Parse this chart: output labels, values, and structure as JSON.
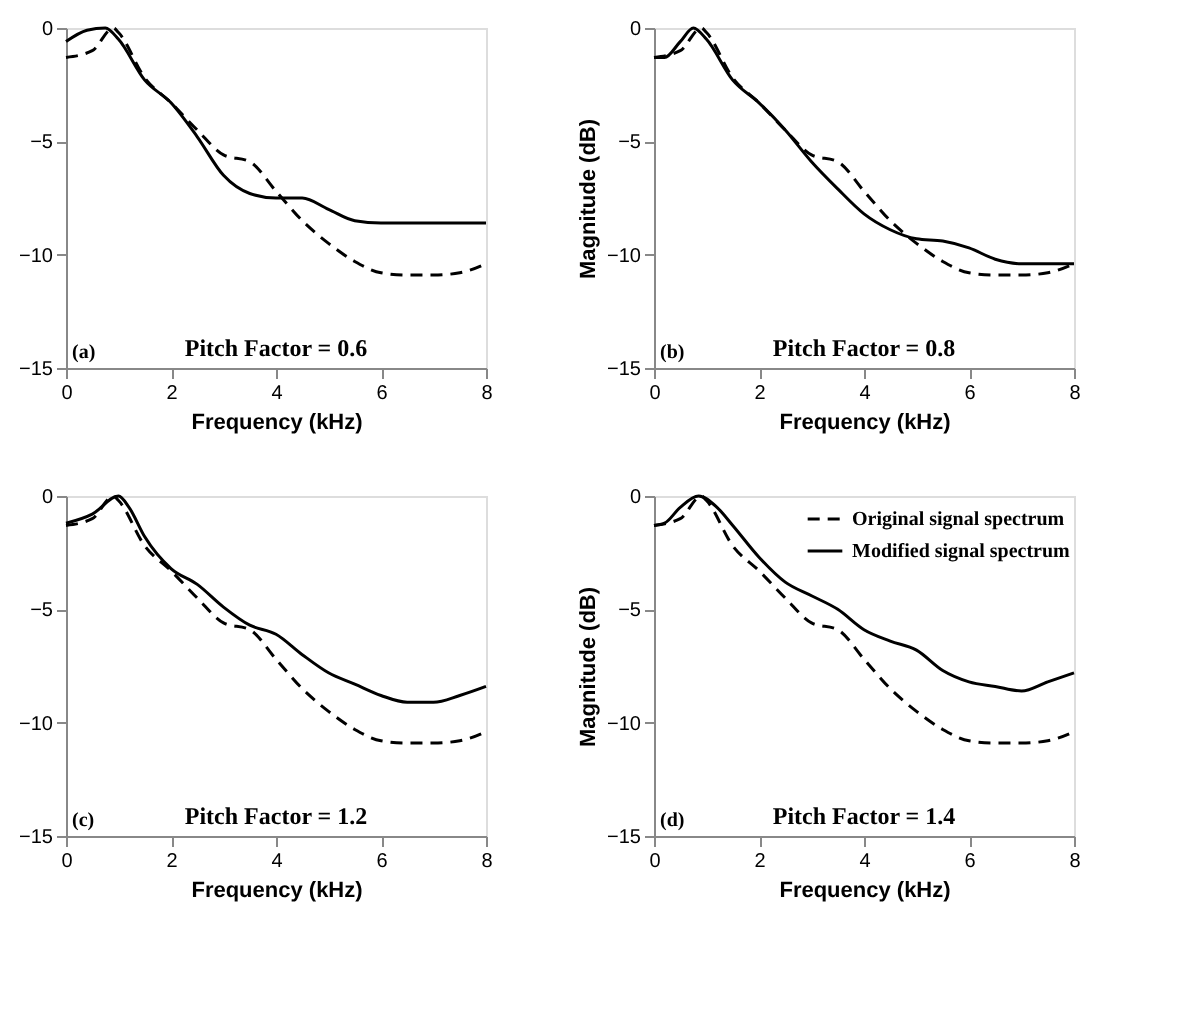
{
  "chart_data": [
    {
      "type": "line",
      "xlabel": "Frequency (kHz)",
      "xlim": [
        0,
        8
      ],
      "xticks": [
        0,
        2,
        4,
        6,
        8
      ],
      "ylim": [
        -15,
        0
      ],
      "yticks": [
        -15,
        -10,
        -5,
        0
      ],
      "grid": false,
      "legend": false,
      "annotations": [
        "(a)",
        "Pitch Factor = 0.6"
      ],
      "series": [
        {
          "color": "#000000",
          "line_style": "dashed",
          "x": [
            0,
            0.5,
            0.9,
            1,
            1.5,
            2,
            2.5,
            3,
            3.5,
            4,
            4.5,
            5,
            5.5,
            6,
            6.5,
            7,
            7.5,
            8
          ],
          "values": [
            -1.3,
            -1.0,
            0,
            -0.2,
            -2.2,
            -3.3,
            -4.5,
            -5.6,
            -5.9,
            -7.2,
            -8.5,
            -9.5,
            -10.3,
            -10.8,
            -10.9,
            -10.9,
            -10.8,
            -10.4
          ]
        },
        {
          "color": "#000000",
          "line_style": "solid",
          "x": [
            0,
            0.4,
            0.75,
            1,
            1.5,
            2,
            2.5,
            3,
            3.5,
            4,
            4.5,
            5,
            5.5,
            6,
            7,
            8
          ],
          "values": [
            -0.6,
            -0.1,
            0,
            -0.5,
            -2.3,
            -3.3,
            -4.8,
            -6.5,
            -7.3,
            -7.5,
            -7.5,
            -8.0,
            -8.5,
            -8.6,
            -8.6,
            -8.6
          ]
        }
      ]
    },
    {
      "type": "line",
      "xlabel": "Frequency (kHz)",
      "ylabel": "Magnitude (dB)",
      "xlim": [
        0,
        8
      ],
      "xticks": [
        0,
        2,
        4,
        6,
        8
      ],
      "ylim": [
        -15,
        0
      ],
      "yticks": [
        -15,
        -10,
        -5,
        0
      ],
      "grid": false,
      "legend": false,
      "annotations": [
        "(b)",
        "Pitch Factor = 0.8"
      ],
      "series": [
        {
          "color": "#000000",
          "line_style": "dashed",
          "x": [
            0,
            0.5,
            0.9,
            1,
            1.5,
            2,
            2.5,
            3,
            3.5,
            4,
            4.5,
            5,
            5.5,
            6,
            6.5,
            7,
            7.5,
            8
          ],
          "values": [
            -1.3,
            -1.0,
            0,
            -0.2,
            -2.2,
            -3.3,
            -4.5,
            -5.6,
            -5.9,
            -7.2,
            -8.5,
            -9.5,
            -10.3,
            -10.8,
            -10.9,
            -10.9,
            -10.8,
            -10.4
          ]
        },
        {
          "color": "#000000",
          "line_style": "solid",
          "x": [
            0,
            0.2,
            0.5,
            0.75,
            1,
            1.5,
            2,
            2.5,
            3,
            3.5,
            4,
            4.5,
            5,
            5.5,
            6,
            6.5,
            7,
            7.5,
            8
          ],
          "values": [
            -1.3,
            -1.3,
            -0.6,
            0,
            -0.5,
            -2.3,
            -3.3,
            -4.5,
            -5.9,
            -7.1,
            -8.2,
            -8.9,
            -9.3,
            -9.4,
            -9.7,
            -10.2,
            -10.4,
            -10.4,
            -10.4
          ]
        }
      ]
    },
    {
      "type": "line",
      "xlabel": "Frequency (kHz)",
      "xlim": [
        0,
        8
      ],
      "xticks": [
        0,
        2,
        4,
        6,
        8
      ],
      "ylim": [
        -15,
        0
      ],
      "yticks": [
        -15,
        -10,
        -5,
        0
      ],
      "grid": false,
      "legend": false,
      "annotations": [
        "(c)",
        "Pitch Factor = 1.2"
      ],
      "series": [
        {
          "color": "#000000",
          "line_style": "dashed",
          "x": [
            0,
            0.5,
            0.9,
            1,
            1.5,
            2,
            2.5,
            3,
            3.5,
            4,
            4.5,
            5,
            5.5,
            6,
            6.5,
            7,
            7.5,
            8
          ],
          "values": [
            -1.3,
            -1.0,
            0,
            -0.2,
            -2.2,
            -3.3,
            -4.5,
            -5.6,
            -5.9,
            -7.2,
            -8.5,
            -9.5,
            -10.3,
            -10.8,
            -10.9,
            -10.9,
            -10.8,
            -10.4
          ]
        },
        {
          "color": "#000000",
          "line_style": "solid",
          "x": [
            0,
            0.5,
            1,
            1.2,
            1.5,
            2,
            2.5,
            3,
            3.5,
            4,
            4.5,
            5,
            5.5,
            6,
            6.5,
            7,
            7.5,
            8
          ],
          "values": [
            -1.2,
            -0.8,
            0,
            -0.5,
            -1.8,
            -3.2,
            -3.9,
            -4.9,
            -5.7,
            -6.1,
            -7.0,
            -7.8,
            -8.3,
            -8.8,
            -9.1,
            -9.1,
            -8.8,
            -8.4
          ]
        }
      ]
    },
    {
      "type": "line",
      "xlabel": "Frequency (kHz)",
      "ylabel": "Magnitude (dB)",
      "xlim": [
        0,
        8
      ],
      "xticks": [
        0,
        2,
        4,
        6,
        8
      ],
      "ylim": [
        -15,
        0
      ],
      "yticks": [
        -15,
        -10,
        -5,
        0
      ],
      "grid": false,
      "legend": "top right",
      "annotations": [
        "(d)",
        "Pitch Factor = 1.4"
      ],
      "series": [
        {
          "name": "Original signal spectrum",
          "color": "#000000",
          "line_style": "dashed",
          "x": [
            0,
            0.5,
            0.9,
            1,
            1.5,
            2,
            2.5,
            3,
            3.5,
            4,
            4.5,
            5,
            5.5,
            6,
            6.5,
            7,
            7.5,
            8
          ],
          "values": [
            -1.3,
            -1.0,
            0,
            -0.2,
            -2.2,
            -3.3,
            -4.5,
            -5.6,
            -5.9,
            -7.2,
            -8.5,
            -9.5,
            -10.3,
            -10.8,
            -10.9,
            -10.9,
            -10.8,
            -10.4
          ]
        },
        {
          "name": "Modified signal spectrum",
          "color": "#000000",
          "line_style": "solid",
          "x": [
            0,
            0.2,
            0.5,
            0.85,
            1.2,
            1.5,
            2,
            2.5,
            3,
            3.5,
            4,
            4.5,
            5,
            5.5,
            6,
            6.5,
            7,
            7.5,
            8
          ],
          "values": [
            -1.3,
            -1.2,
            -0.5,
            0,
            -0.5,
            -1.3,
            -2.7,
            -3.8,
            -4.4,
            -5.0,
            -5.9,
            -6.4,
            -6.8,
            -7.7,
            -8.2,
            -8.4,
            -8.6,
            -8.2,
            -7.8
          ]
        }
      ]
    }
  ]
}
